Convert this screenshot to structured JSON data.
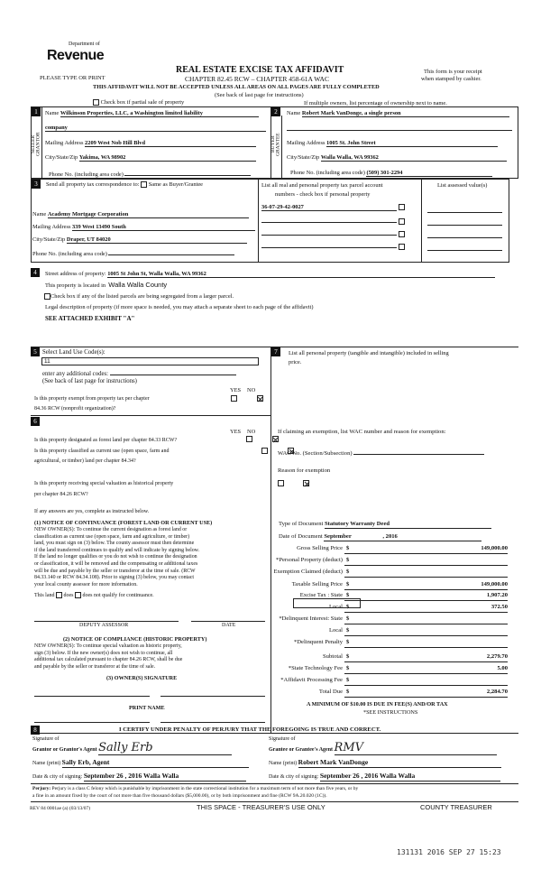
{
  "header": {
    "logo_dept": "Department of",
    "logo_word": "Revenue",
    "please": "PLEASE TYPE OR PRINT",
    "title": "REAL ESTATE EXCISE TAX AFFIDAVIT",
    "chapter": "CHAPTER 82.45 RCW – CHAPTER 458-61A WAC",
    "receipt1": "This form is your receipt",
    "receipt2": "when stamped by cashier.",
    "warning": "THIS AFFIDAVIT WILL NOT BE ACCEPTED UNLESS ALL AREAS ON ALL PAGES ARE FULLY COMPLETED",
    "see_back": "(See back of last page for instructions)",
    "partial": "Check box if partial sale of property",
    "multiple": "If multiple owners, list percentage of ownership next to name."
  },
  "s1": {
    "num": "1",
    "side": "SELLER GRANTOR",
    "name_label": "Name",
    "name": "Wilkinson Properties, LLC, a Washington limited liability",
    "name2": "company",
    "mail_label": "Mailing Address",
    "mail": "2209 West Nob Hill Blvd",
    "city_label": "City/State/Zip",
    "city": "Yakima, WA  98902",
    "phone_label": "Phone No. (including area code)"
  },
  "s2": {
    "num": "2",
    "side": "BUYER GRANTEE",
    "name_label": "Name",
    "name": "Robert Mark VanDonge, a single person",
    "mail_label": "Mailing Address",
    "mail": "1005 St. John Street",
    "city_label": "City/State/Zip",
    "city": "Walla Walla, WA  99362",
    "phone_label": "Phone No. (including area code)",
    "phone": "(509) 301-2294"
  },
  "s3": {
    "num": "3",
    "send": "Send all property tax correspondence to:",
    "same": "Same as Buyer/Grantee",
    "name_label": "Name",
    "name": "Academy Mortgage Corporation",
    "mail_label": "Mailing Address",
    "mail": "339 West 13490 South",
    "city_label": "City/State/Zip",
    "city": "Draper, UT  84020",
    "phone_label": "Phone No. (including area code)",
    "parcel_head1": "List all real and personal property tax parcel account",
    "parcel_head2": "numbers - check box if personal property",
    "assessed_head": "List assessed value(s)",
    "parcels": [
      "36-07-29-42-0027",
      "",
      "",
      ""
    ]
  },
  "s4": {
    "num": "4",
    "street_label": "Street address of property:",
    "street": "1005 St John St, Walla Walla, WA  99362",
    "located": "This property is located in",
    "county": "Walla Walla County",
    "segregated": "Check box if any of the listed parcels are being segregated from a larger parcel.",
    "legal": "Legal description of property (if more space is needed, you may attach a separate sheet to each page of the affidavit)",
    "legal_value": "SEE ATTACHED EXHIBIT \"A\""
  },
  "s5": {
    "num": "5",
    "select": "Select Land Use Code(s):",
    "code": "11",
    "additional": "enter any additional codes:",
    "see_back": "(See back of last page for instructions)",
    "yes": "YES",
    "no": "NO",
    "exempt1": "Is this property exempt from property tax per chapter",
    "exempt2": "84.36 RCW (nonprofit organization)?",
    "exempt_answer": "NO"
  },
  "s6": {
    "num": "6",
    "yes": "YES",
    "no": "NO",
    "q_forest": "Is this property designated as forest land per chapter 84.33 RCW?",
    "q_current1": "Is this property classified as current use (open space, farm and",
    "q_current2": "agricultural, or timber) land per chapter 84.34?",
    "q_hist1": "Is this property receiving special valuation as historical property",
    "q_hist2": "per chapter 84.26 RCW?",
    "answers": [
      "NO",
      "NO",
      "NO"
    ],
    "if_any": "If any answers are yes, complete as instructed below.",
    "n1_head": "(1) NOTICE OF CONTINUANCE (FOREST LAND OR CURRENT USE)",
    "n1_lines": [
      "NEW OWNER(S): To continue the current designation as forest land or",
      "classification as current use (open space, farm and agriculture, or timber)",
      "land, you must sign on (3) below. The county assessor must then determine",
      "if the land transferred continues to qualify and will indicate by signing below.",
      "If the land no longer qualifies or you do not wish to continue the designation",
      "or classification, it will be removed and the compensating or additional taxes",
      "will be due and payable by the seller or transferor at the time of sale. (RCW",
      "84.33.140 or RCW 84.34.108). Prior to signing (3) below, you may contact",
      "your local county assessor for more information."
    ],
    "this_land": "This land",
    "does": "does",
    "does_not": "does not  qualify for continuance.",
    "deputy": "DEPUTY ASSESSOR",
    "date": "DATE",
    "n2_head": "(2) NOTICE OF COMPLIANCE (HISTORIC PROPERTY)",
    "n2_lines": [
      "NEW OWNER(S): To continue special valuation as historic property,",
      "sign (3) below. If the new owner(s) does not wish to continue, all",
      "additional tax calculated pursuant to chapter 84.26 RCW, shall be due",
      "and payable by the seller or transferor at the time of sale."
    ],
    "n3_head": "(3) OWNER(S) SIGNATURE",
    "print_name": "PRINT NAME"
  },
  "s7": {
    "num": "7",
    "personal1": "List all personal property (tangible and intangible) included in selling",
    "personal2": "price.",
    "exemption": "If claiming an exemption, list WAC number and reason for exemption:",
    "wac": "WAC No. (Section/Subsection)",
    "reason": "Reason for exemption",
    "doc_type_label": "Type of Document",
    "doc_type": "Statutory Warranty Deed",
    "doc_date_label": "Date of Document",
    "doc_month": "September",
    "doc_year": ", 2016",
    "rows": [
      {
        "label": "Gross Selling Price",
        "value": "149,000.00"
      },
      {
        "label": "*Personal Property (deduct)",
        "value": ""
      },
      {
        "label": "Exemption Claimed (deduct)",
        "value": ""
      },
      {
        "label": "Taxable Selling Price",
        "value": "149,000.00"
      },
      {
        "label": "Excise Tax : State",
        "value": "1,907.20"
      },
      {
        "label": "Local",
        "value": "372.50"
      },
      {
        "label": "*Delinquent Interest:  State",
        "value": ""
      },
      {
        "label": "Local",
        "value": ""
      },
      {
        "label": "*Delinquent Penalty",
        "value": ""
      },
      {
        "label": "Subtotal",
        "value": "2,279.70"
      },
      {
        "label": "*State Technology Fee",
        "value": "5.00"
      },
      {
        "label": "*Affidavit Processing Fee",
        "value": ""
      },
      {
        "label": "Total Due",
        "value": "2,284.70"
      }
    ],
    "dollar": "$",
    "minimum": "A MINIMUM OF $10.00 IS DUE IN FEE(S) AND/OR TAX",
    "see_instr": "*SEE INSTRUCTIONS"
  },
  "s8": {
    "num": "8",
    "certify": "I CERTIFY UNDER PENALTY OF PERJURY THAT THE FOREGOING IS TRUE AND CORRECT.",
    "sig_of": "Signature of",
    "grantor_agent": "Grantor or Grantor's Agent",
    "grantee_agent": "Grantee or Grantee's Agent",
    "grantor_sig": "Sally Erb",
    "grantee_sig": "RMV",
    "name_print": "Name (print)",
    "grantor_name": "Sally Erb, Agent",
    "grantee_name": "Robert Mark VanDonge",
    "date_city": "Date & city of signing:",
    "grantor_date": "September 26 , 2016  Walla Walla",
    "grantee_date": "September 26 , 2016   Walla Walla",
    "perjury_label": "Perjury:",
    "perjury1": "Perjury is a class C felony which is punishable by imprisonment in the state correctional institution for a maximum term of not more than five years, or by",
    "perjury2": "a fine in an amount fixed by the court of not more than five thousand dollars ($5,000.00), or by both imprisonment and fine (RCW 9A.20.020 (1C))."
  },
  "footer": {
    "rev": "REV 84 0001ae (a) (03/13/07)",
    "treasurer_use": "THIS SPACE - TREASURER'S USE ONLY",
    "county_treasurer": "COUNTY TREASURER",
    "stamp": "131131 2016 SEP 27 15:23"
  }
}
